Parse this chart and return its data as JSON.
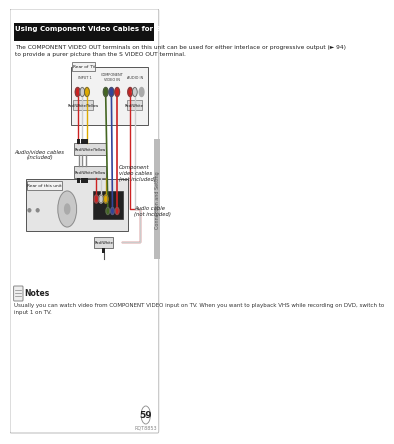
{
  "page_bg": "#ffffff",
  "border_color": "#b0b0b0",
  "title_text": "Using Component Video Cables for Better Video (Component Video Cables not included)",
  "title_bg": "#111111",
  "title_fg": "#ffffff",
  "title_fontsize": 5.0,
  "body_text": "The COMPONENT VIDEO OUT terminals on this unit can be used for either interlace or progressive output (► 94)\nto provide a purer picture than the S VIDEO OUT terminal.",
  "body_fontsize": 4.2,
  "rear_tv_label": "Rear of TV",
  "rear_unit_label": "Rear of this unit",
  "audio_video_cables_label": "Audio/video cables\n(included)",
  "component_cables_label": "Component\nvideo cables\n(not included)",
  "audio_cable_label": "Audio cable\n(not included)",
  "notes_title": "Notes",
  "notes_text": "Usually you can watch video from COMPONENT VIDEO input on TV. When you want to playback VHS while recording on DVD, switch to\ninput 1 on TV.",
  "notes_fontsize": 4.0,
  "page_num": "59",
  "model_text": "RQT8853",
  "connector_red": "#cc2222",
  "connector_white": "#cccccc",
  "connector_yellow": "#ddaa00",
  "connector_green": "#446622",
  "connector_blue": "#334499",
  "label_box_bg": "#dddddd",
  "label_box_fg": "#111111",
  "diagram_label_fontsize": 3.8,
  "small_fontsize": 3.2,
  "side_bar_color": "#bbbbbb",
  "dark_block": "#222222",
  "med_block": "#555555"
}
